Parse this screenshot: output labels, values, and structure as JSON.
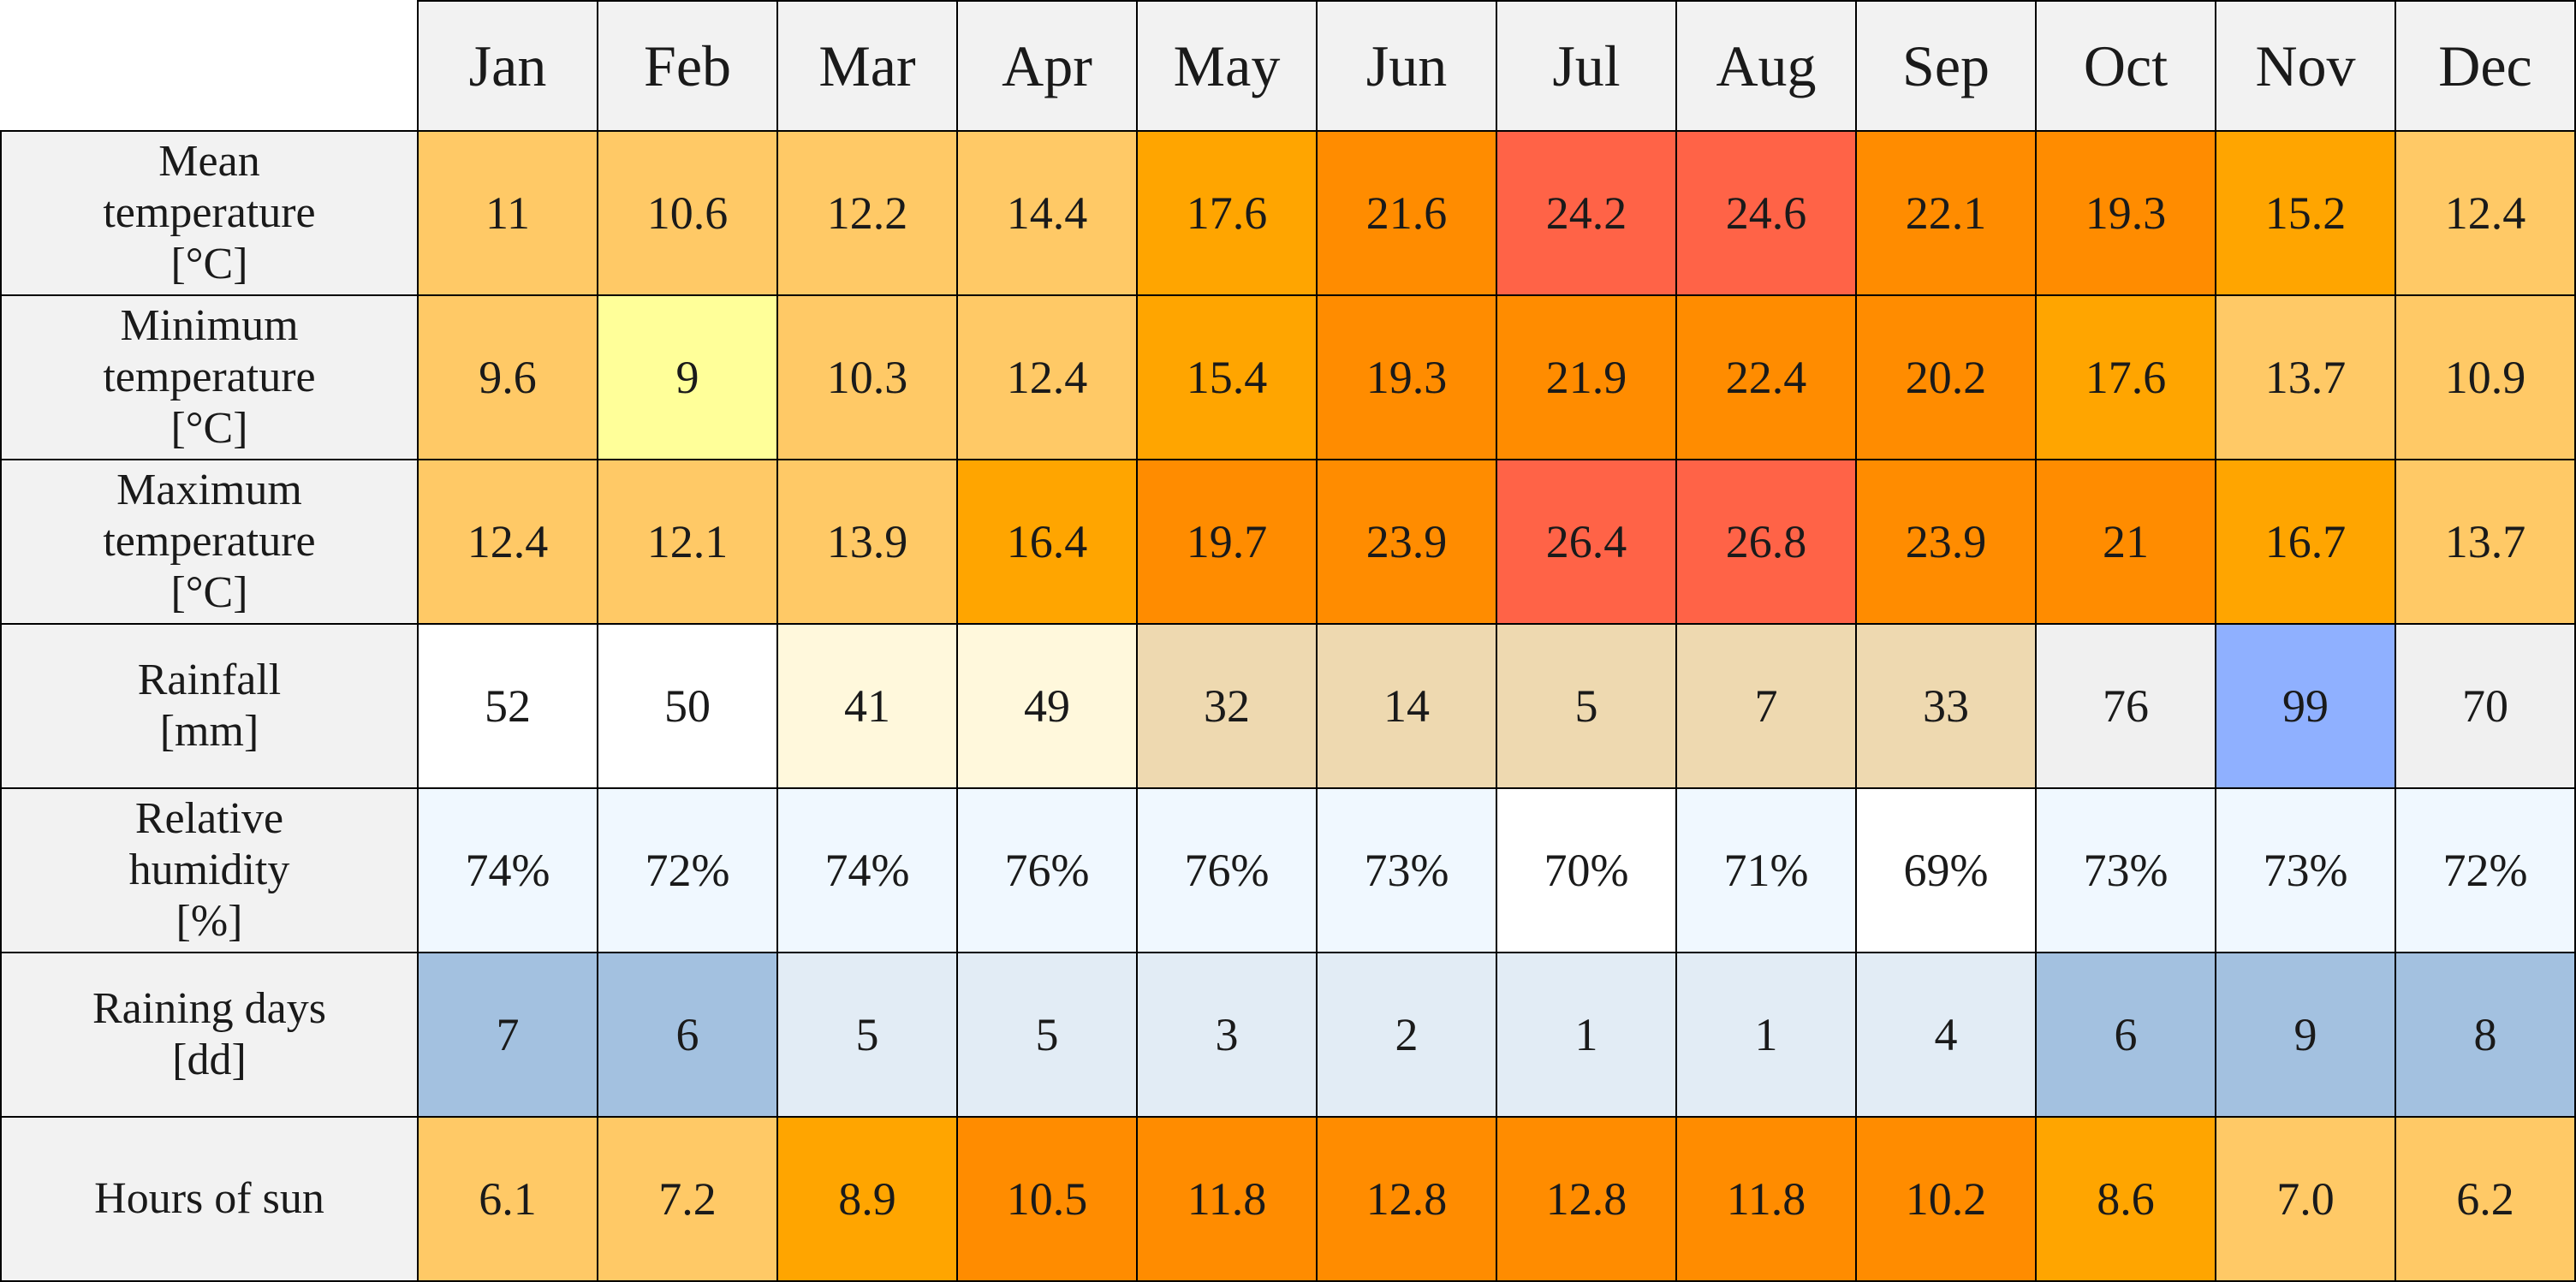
{
  "months": [
    "Jan",
    "Feb",
    "Mar",
    "Apr",
    "May",
    "Jun",
    "Jul",
    "Aug",
    "Sep",
    "Oct",
    "Nov",
    "Dec"
  ],
  "rows": [
    {
      "label": "Mean\ntemperature\n[°C]",
      "values": [
        "11",
        "10.6",
        "12.2",
        "14.4",
        "17.6",
        "21.6",
        "24.2",
        "24.6",
        "22.1",
        "19.3",
        "15.2",
        "12.4"
      ],
      "colors": [
        "#ffc966",
        "#ffc966",
        "#ffc966",
        "#ffc966",
        "#ffa500",
        "#ff8c00",
        "#ff6347",
        "#ff6347",
        "#ff8c00",
        "#ff8c00",
        "#ffa500",
        "#ffc966"
      ]
    },
    {
      "label": "Minimum\ntemperature\n[°C]",
      "values": [
        "9.6",
        "9",
        "10.3",
        "12.4",
        "15.4",
        "19.3",
        "21.9",
        "22.4",
        "20.2",
        "17.6",
        "13.7",
        "10.9"
      ],
      "colors": [
        "#ffc966",
        "#ffff99",
        "#ffc966",
        "#ffc966",
        "#ffa500",
        "#ff8c00",
        "#ff8c00",
        "#ff8c00",
        "#ff8c00",
        "#ffa500",
        "#ffc966",
        "#ffc966"
      ]
    },
    {
      "label": "Maximum\ntemperature\n[°C]",
      "values": [
        "12.4",
        "12.1",
        "13.9",
        "16.4",
        "19.7",
        "23.9",
        "26.4",
        "26.8",
        "23.9",
        "21",
        "16.7",
        "13.7"
      ],
      "colors": [
        "#ffc966",
        "#ffc966",
        "#ffc966",
        "#ffa500",
        "#ff8c00",
        "#ff8c00",
        "#ff6347",
        "#ff6347",
        "#ff8c00",
        "#ff8c00",
        "#ffa500",
        "#ffc966"
      ]
    },
    {
      "label": "Rainfall\n[mm]",
      "values": [
        "52",
        "50",
        "41",
        "49",
        "32",
        "14",
        "5",
        "7",
        "33",
        "76",
        "99",
        "70"
      ],
      "colors": [
        "#ffffff",
        "#ffffff",
        "#fff8dc",
        "#fff8dc",
        "#eed9b0",
        "#eed9b0",
        "#eed9b0",
        "#eed9b0",
        "#eed9b0",
        "#f0f0f0",
        "#8fb0ff",
        "#f0f0f0"
      ]
    },
    {
      "label": "Relative\nhumidity\n[%]",
      "values": [
        "74%",
        "72%",
        "74%",
        "76%",
        "76%",
        "73%",
        "70%",
        "71%",
        "69%",
        "73%",
        "73%",
        "72%"
      ],
      "colors": [
        "#f0f8ff",
        "#f0f8ff",
        "#f0f8ff",
        "#f0f8ff",
        "#f0f8ff",
        "#f0f8ff",
        "#ffffff",
        "#f0f8ff",
        "#ffffff",
        "#f0f8ff",
        "#f0f8ff",
        "#f0f8ff"
      ]
    },
    {
      "label": "Raining days\n[dd]",
      "values": [
        "7",
        "6",
        "5",
        "5",
        "3",
        "2",
        "1",
        "1",
        "4",
        "6",
        "9",
        "8"
      ],
      "colors": [
        "#a3c1e0",
        "#a3c1e0",
        "#e2ecf5",
        "#e2ecf5",
        "#e2ecf5",
        "#e2ecf5",
        "#e2ecf5",
        "#e2ecf5",
        "#e2ecf5",
        "#a3c1e0",
        "#a3c1e0",
        "#a3c1e0"
      ]
    },
    {
      "label": "Hours of sun",
      "values": [
        "6.1",
        "7.2",
        "8.9",
        "10.5",
        "11.8",
        "12.8",
        "12.8",
        "11.8",
        "10.2",
        "8.6",
        "7.0",
        "6.2"
      ],
      "colors": [
        "#ffc966",
        "#ffc966",
        "#ffa500",
        "#ff8c00",
        "#ff8c00",
        "#ff8c00",
        "#ff8c00",
        "#ff8c00",
        "#ff8c00",
        "#ffa500",
        "#ffc966",
        "#ffc966"
      ]
    }
  ],
  "chart_data": {
    "type": "table",
    "columns": [
      "Jan",
      "Feb",
      "Mar",
      "Apr",
      "May",
      "Jun",
      "Jul",
      "Aug",
      "Sep",
      "Oct",
      "Nov",
      "Dec"
    ],
    "series": [
      {
        "name": "Mean temperature [°C]",
        "values": [
          11,
          10.6,
          12.2,
          14.4,
          17.6,
          21.6,
          24.2,
          24.6,
          22.1,
          19.3,
          15.2,
          12.4
        ]
      },
      {
        "name": "Minimum temperature [°C]",
        "values": [
          9.6,
          9,
          10.3,
          12.4,
          15.4,
          19.3,
          21.9,
          22.4,
          20.2,
          17.6,
          13.7,
          10.9
        ]
      },
      {
        "name": "Maximum temperature [°C]",
        "values": [
          12.4,
          12.1,
          13.9,
          16.4,
          19.7,
          23.9,
          26.4,
          26.8,
          23.9,
          21,
          16.7,
          13.7
        ]
      },
      {
        "name": "Rainfall [mm]",
        "values": [
          52,
          50,
          41,
          49,
          32,
          14,
          5,
          7,
          33,
          76,
          99,
          70
        ]
      },
      {
        "name": "Relative humidity [%]",
        "values": [
          74,
          72,
          74,
          76,
          76,
          73,
          70,
          71,
          69,
          73,
          73,
          72
        ]
      },
      {
        "name": "Raining days [dd]",
        "values": [
          7,
          6,
          5,
          5,
          3,
          2,
          1,
          1,
          4,
          6,
          9,
          8
        ]
      },
      {
        "name": "Hours of sun",
        "values": [
          6.1,
          7.2,
          8.9,
          10.5,
          11.8,
          12.8,
          12.8,
          11.8,
          10.2,
          8.6,
          7.0,
          6.2
        ]
      }
    ]
  }
}
